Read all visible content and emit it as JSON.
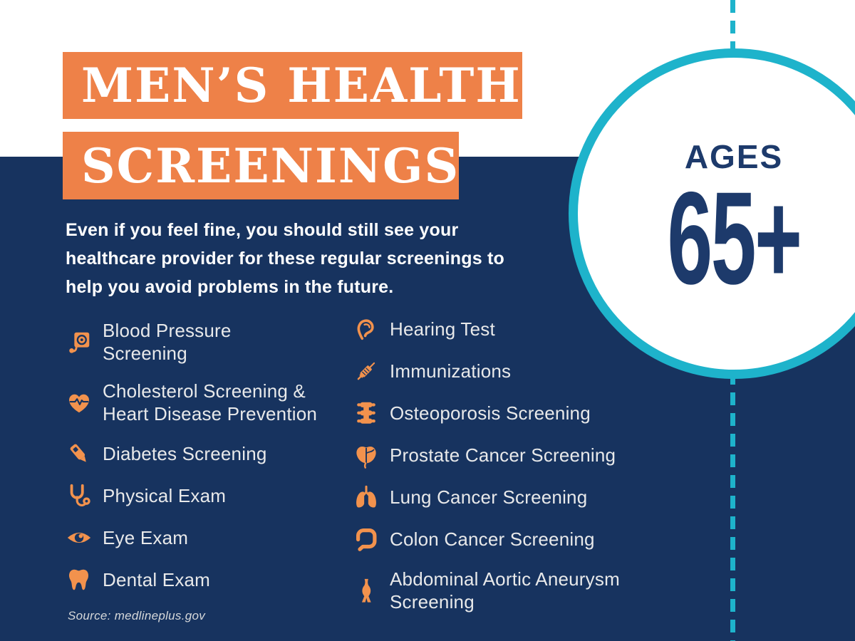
{
  "colors": {
    "navy": "#17335f",
    "navy_deep": "#1d3a6b",
    "orange": "#ee8148",
    "icon_orange": "#f2924d",
    "teal": "#1eb3cb",
    "list_text": "#e8e9ea",
    "source_text": "#d6d8da",
    "white": "#ffffff"
  },
  "title": {
    "line1": "MEN’S HEALTH",
    "line2": "SCREENINGS"
  },
  "badge": {
    "label": "AGES",
    "value": "65+"
  },
  "intro_lines": [
    "Even if you feel fine, you should still see your",
    "healthcare provider for these regular screenings to",
    "help you avoid problems in the future."
  ],
  "lists": {
    "left": [
      {
        "icon": "blood-pressure-icon",
        "label": "Blood Pressure Screening"
      },
      {
        "icon": "heart-pulse-icon",
        "label": "Cholesterol Screening & Heart Disease Prevention"
      },
      {
        "icon": "glucose-meter-icon",
        "label": "Diabetes Screening"
      },
      {
        "icon": "stethoscope-icon",
        "label": "Physical Exam"
      },
      {
        "icon": "eye-icon",
        "label": "Eye Exam"
      },
      {
        "icon": "tooth-icon",
        "label": "Dental Exam"
      }
    ],
    "right": [
      {
        "icon": "ear-icon",
        "label": "Hearing Test"
      },
      {
        "icon": "syringe-icon",
        "label": "Immunizations"
      },
      {
        "icon": "spine-icon",
        "label": "Osteoporosis Screening"
      },
      {
        "icon": "prostate-icon",
        "label": "Prostate Cancer Screening"
      },
      {
        "icon": "lungs-icon",
        "label": "Lung Cancer Screening"
      },
      {
        "icon": "colon-icon",
        "label": "Colon Cancer Screening"
      },
      {
        "icon": "aorta-icon",
        "label": "Abdominal Aortic Aneurysm Screening"
      }
    ]
  },
  "source": "Source: medlineplus.gov"
}
